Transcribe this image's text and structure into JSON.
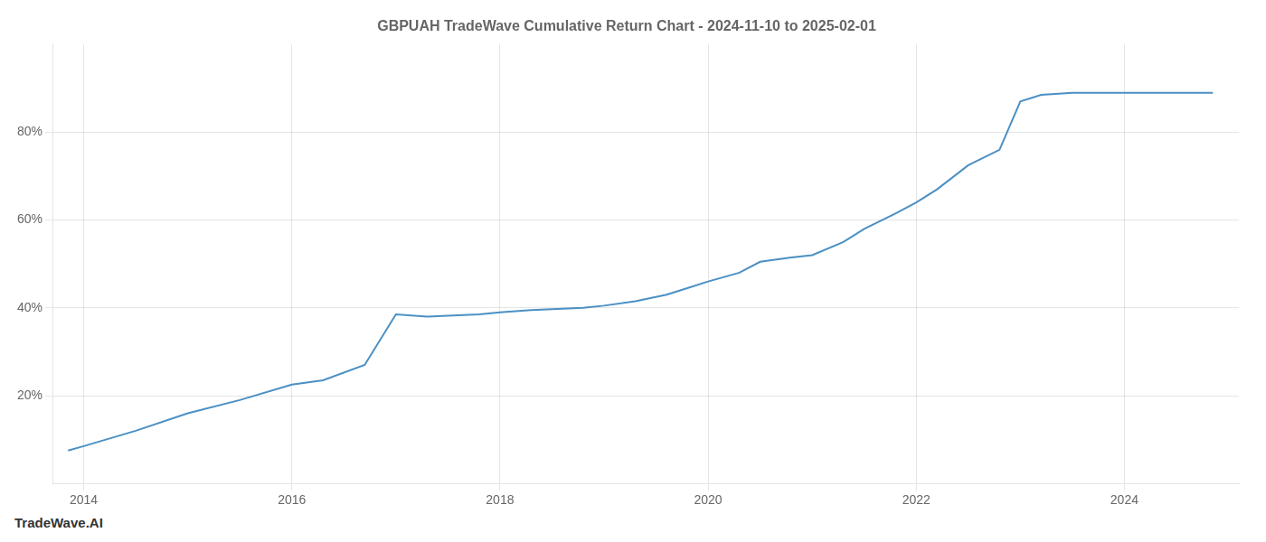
{
  "chart_data": {
    "type": "line",
    "title": "GBPUAH TradeWave Cumulative Return Chart - 2024-11-10 to 2025-02-01",
    "annotations": [
      "TradeWave.AI"
    ],
    "x": [
      2013.85,
      2014.0,
      2014.5,
      2015.0,
      2015.5,
      2016.0,
      2016.3,
      2016.7,
      2017.0,
      2017.3,
      2017.5,
      2017.8,
      2018.0,
      2018.3,
      2018.8,
      2019.0,
      2019.3,
      2019.6,
      2019.8,
      2020.0,
      2020.3,
      2020.5,
      2020.8,
      2021.0,
      2021.3,
      2021.5,
      2021.8,
      2022.0,
      2022.2,
      2022.5,
      2022.8,
      2023.0,
      2023.2,
      2023.5,
      2023.8,
      2024.0,
      2024.2,
      2024.5,
      2024.85
    ],
    "values": [
      7.5,
      8.5,
      12.0,
      16.0,
      19.0,
      22.5,
      23.5,
      27.0,
      38.5,
      38.0,
      38.2,
      38.5,
      39.0,
      39.5,
      40.0,
      40.5,
      41.5,
      43.0,
      44.5,
      46.0,
      48.0,
      50.5,
      51.5,
      52.0,
      55.0,
      58.0,
      61.5,
      64.0,
      67.0,
      72.5,
      76.0,
      87.0,
      88.5,
      89.0,
      89.0,
      89.0,
      89.0,
      89.0,
      89.0
    ],
    "color": "#4A90C4",
    "xlim": [
      2013.7,
      2025.1
    ],
    "xticks": [
      2014,
      2016,
      2018,
      2020,
      2022,
      2024
    ],
    "ylim": [
      0,
      100
    ],
    "yticks": [
      {
        "value": 20,
        "label": "20%"
      },
      {
        "value": 40,
        "label": "40%"
      },
      {
        "value": 60,
        "label": "60%"
      },
      {
        "value": 80,
        "label": "80%"
      }
    ],
    "grid": true
  }
}
